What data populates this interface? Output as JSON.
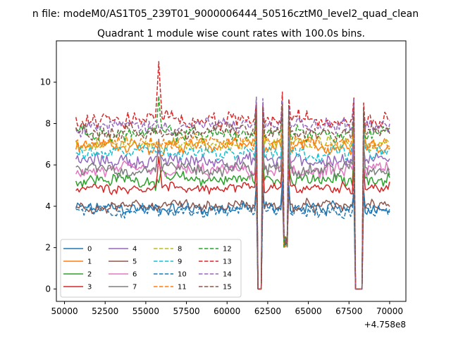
{
  "chart_data": {
    "type": "line",
    "suptitle": "n file: modeM0/AS1T05_239T01_9000006444_50516cztM0_level2_quad_clean",
    "title": "Quadrant 1 module wise count rates with 100.0s bins.",
    "xlabel": "",
    "ylabel": "",
    "x_offset_label": "+4.758e8",
    "xlim": [
      49500,
      71000
    ],
    "ylim": [
      -0.6,
      12.0
    ],
    "x_ticks": [
      50000,
      52500,
      55000,
      57500,
      60000,
      62500,
      65000,
      67500,
      70000
    ],
    "x_tick_labels": [
      "50000",
      "52500",
      "55000",
      "57500",
      "60000",
      "62500",
      "65000",
      "67500",
      "70000"
    ],
    "y_ticks": [
      0,
      2,
      4,
      6,
      8,
      10
    ],
    "y_tick_labels": [
      "0",
      "2",
      "4",
      "6",
      "8",
      "10"
    ],
    "x_range": [
      50700,
      70000
    ],
    "bin_width": 100,
    "gaps": [
      {
        "start": 61900,
        "end": 62100,
        "kind": "zero"
      },
      {
        "start": 63500,
        "end": 63700,
        "kind": "dip"
      },
      {
        "start": 67900,
        "end": 68300,
        "kind": "zero"
      }
    ],
    "spike": {
      "x": 55800,
      "series_boost": {
        "13": 3.0,
        "12": 1.8,
        "7": 1.6,
        "3": 1.4
      }
    },
    "legend_location": "lower left",
    "series": [
      {
        "name": "0",
        "level": 3.9,
        "noise": 0.35,
        "color": "#1f77b4",
        "dash": "solid"
      },
      {
        "name": "1",
        "level": 6.9,
        "noise": 0.4,
        "color": "#ff7f0e",
        "dash": "solid"
      },
      {
        "name": "2",
        "level": 5.3,
        "noise": 0.4,
        "color": "#2ca02c",
        "dash": "solid"
      },
      {
        "name": "3",
        "level": 4.9,
        "noise": 0.3,
        "color": "#d62728",
        "dash": "solid"
      },
      {
        "name": "4",
        "level": 6.2,
        "noise": 0.4,
        "color": "#9467bd",
        "dash": "solid"
      },
      {
        "name": "5",
        "level": 4.0,
        "noise": 0.3,
        "color": "#8c564b",
        "dash": "solid"
      },
      {
        "name": "6",
        "level": 5.7,
        "noise": 0.4,
        "color": "#e377c2",
        "dash": "solid"
      },
      {
        "name": "7",
        "level": 5.8,
        "noise": 0.4,
        "color": "#7f7f7f",
        "dash": "solid"
      },
      {
        "name": "8",
        "level": 7.0,
        "noise": 0.35,
        "color": "#bcbd22",
        "dash": "dashed"
      },
      {
        "name": "9",
        "level": 6.6,
        "noise": 0.4,
        "color": "#17becf",
        "dash": "dashed"
      },
      {
        "name": "10",
        "level": 3.8,
        "noise": 0.35,
        "color": "#1f77b4",
        "dash": "dashed"
      },
      {
        "name": "11",
        "level": 7.1,
        "noise": 0.4,
        "color": "#ff7f0e",
        "dash": "dashed"
      },
      {
        "name": "12",
        "level": 7.5,
        "noise": 0.4,
        "color": "#2ca02c",
        "dash": "dashed"
      },
      {
        "name": "13",
        "level": 8.2,
        "noise": 0.45,
        "color": "#d62728",
        "dash": "dashed"
      },
      {
        "name": "14",
        "level": 7.9,
        "noise": 0.4,
        "color": "#9467bd",
        "dash": "dashed"
      },
      {
        "name": "15",
        "level": 7.6,
        "noise": 0.4,
        "color": "#8c564b",
        "dash": "dashed"
      }
    ]
  }
}
